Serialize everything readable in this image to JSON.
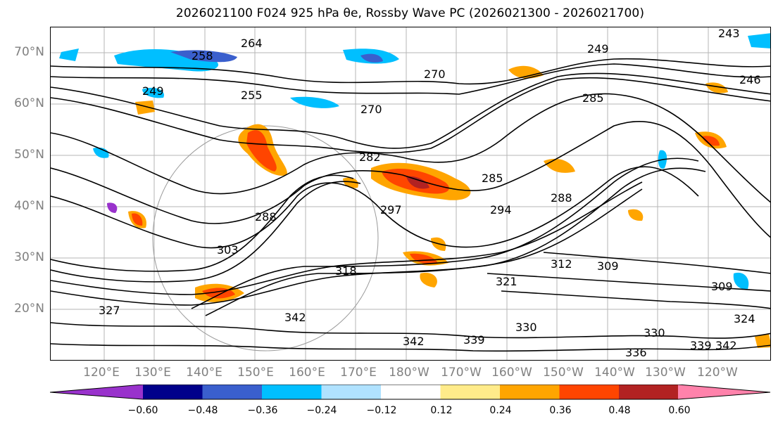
{
  "title": "2026021100 F024 925 hPa θe, Rossby Wave PC (2026021300 - 2026021700)",
  "lat_labels": [
    "70°N",
    "60°N",
    "50°N",
    "40°N",
    "30°N",
    "20°N"
  ],
  "lon_labels": [
    "120°E",
    "130°E",
    "140°E",
    "150°E",
    "160°E",
    "170°E",
    "180°W",
    "170°W",
    "160°W",
    "150°W",
    "140°W",
    "130°W",
    "120°W"
  ],
  "contour_labels": [
    "243",
    "249",
    "246",
    "264",
    "258",
    "270",
    "255",
    "249",
    "270",
    "282",
    "285",
    "285",
    "294",
    "297",
    "288",
    "288",
    "303",
    "312",
    "309",
    "318",
    "321",
    "327",
    "342",
    "342",
    "339",
    "336",
    "339",
    "342",
    "330",
    "330",
    "324",
    "309"
  ],
  "colorbar": {
    "colors": [
      "#9932cc",
      "#00008b",
      "#3a5fcd",
      "#00bfff",
      "#b0e2ff",
      "#ffffff",
      "#ffeb8a",
      "#ffa500",
      "#ff4500",
      "#b22222",
      "#ff82ab"
    ],
    "ticks": [
      "−0.60",
      "−0.48",
      "−0.36",
      "−0.24",
      "−0.12",
      "0.12",
      "0.24",
      "0.36",
      "0.48",
      "0.60"
    ]
  }
}
